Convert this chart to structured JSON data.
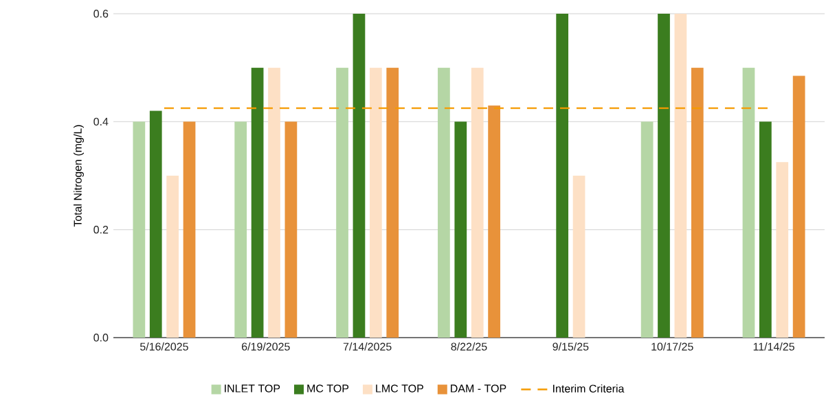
{
  "chart_data": {
    "type": "bar",
    "ylabel": "Total Nitrogen (mg/L)",
    "categories": [
      "5/16/2025",
      "6/19/2025",
      "7/14/2025",
      "8/22/25",
      "9/15/25",
      "10/17/25",
      "11/14/25"
    ],
    "series": [
      {
        "name": "INLET TOP",
        "color": "#b5d6a5",
        "values": [
          0.4,
          0.4,
          0.5,
          0.5,
          null,
          0.4,
          0.5
        ]
      },
      {
        "name": "MC TOP",
        "color": "#3b7d1f",
        "values": [
          0.42,
          0.5,
          0.6,
          0.4,
          0.6,
          0.6,
          0.4
        ]
      },
      {
        "name": "LMC TOP",
        "color": "#fde0c5",
        "values": [
          0.3,
          0.5,
          0.5,
          0.5,
          0.3,
          0.6,
          0.325
        ]
      },
      {
        "name": "DAM - TOP",
        "color": "#e8923a",
        "values": [
          0.4,
          0.4,
          0.5,
          0.43,
          null,
          0.5,
          0.485
        ]
      }
    ],
    "ylim": [
      0,
      0.6
    ],
    "yticks": [
      {
        "value": 0,
        "label": "0.0"
      },
      0.2,
      0.4,
      0.6
    ],
    "ref_lines": [
      {
        "axis": "y",
        "value": 0.425,
        "label": "Interim Criteria",
        "color": "#f59a00",
        "line_style": "dashed"
      }
    ],
    "grid": "y",
    "legend": "bottom"
  }
}
